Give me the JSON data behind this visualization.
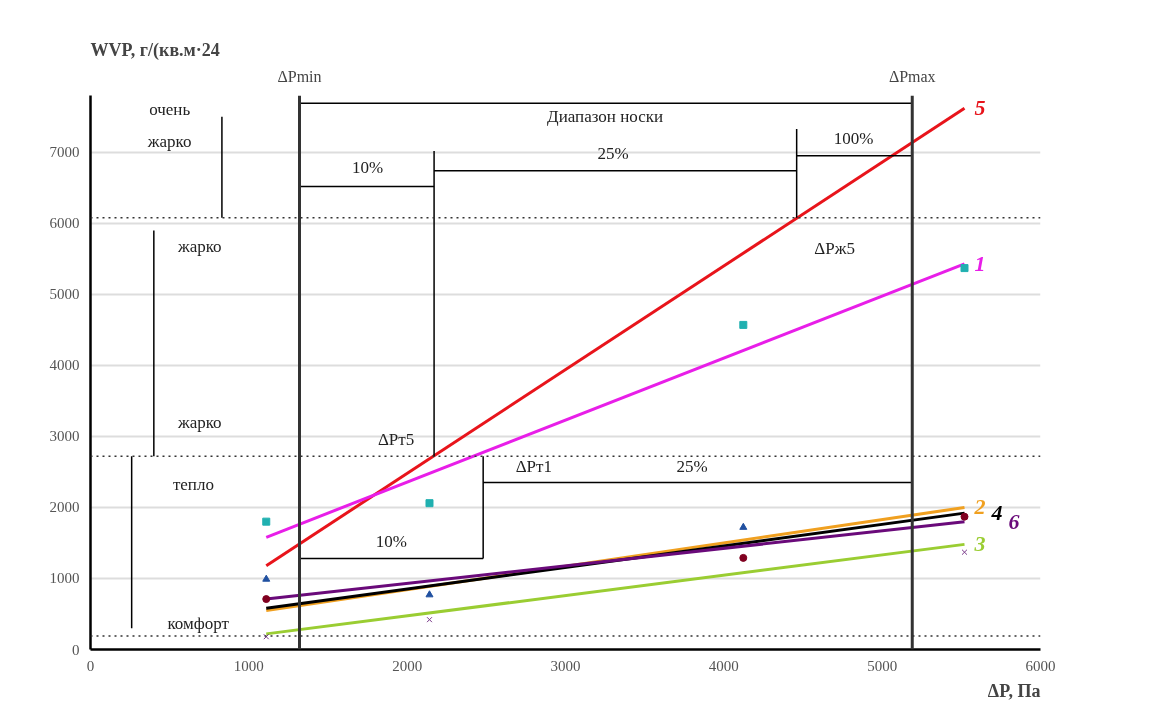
{
  "chart_data": {
    "type": "line",
    "xlabel": "ΔP, Па",
    "ylabel": "WVP,\nг/(кв.м·24",
    "xlim": [
      0,
      6000
    ],
    "ylim": [
      0,
      7800
    ],
    "xticks": [
      0,
      1000,
      2000,
      3000,
      4000,
      5000,
      6000
    ],
    "yticks": [
      0,
      1000,
      2000,
      3000,
      4000,
      5000,
      6000,
      7000
    ],
    "grid": "y",
    "legend": false,
    "line_style": "solid",
    "series": [
      {
        "name": "5",
        "color": "#e8141b",
        "x": [
          1110,
          5520
        ],
        "values": [
          1180,
          7620
        ]
      },
      {
        "name": "1",
        "color": "#e81ee8",
        "x": [
          1110,
          5520
        ],
        "values": [
          1580,
          5430
        ]
      },
      {
        "name": "2",
        "color": "#f0a020",
        "x": [
          1110,
          5520
        ],
        "values": [
          550,
          2000
        ]
      },
      {
        "name": "4",
        "color": "#000000",
        "x": [
          1110,
          5520
        ],
        "values": [
          580,
          1920
        ]
      },
      {
        "name": "6",
        "color": "#6a0a7a",
        "x": [
          1110,
          5520
        ],
        "values": [
          710,
          1800
        ]
      },
      {
        "name": "3",
        "color": "#9acd32",
        "x": [
          1110,
          5520
        ],
        "values": [
          220,
          1480
        ]
      },
      {
        "type": "scatter",
        "marker": "square",
        "color": "#20b0b0",
        "x": [
          1110,
          2141,
          4123,
          5520
        ],
        "values": [
          1800,
          2060,
          4570,
          5370
        ]
      },
      {
        "type": "scatter",
        "marker": "triangle",
        "color": "#2050a0",
        "x": [
          1110,
          2141,
          4123
        ],
        "values": [
          990,
          770,
          1720
        ]
      },
      {
        "type": "scatter",
        "marker": "circle",
        "color": "#800020",
        "x": [
          1110,
          4123,
          5520
        ],
        "values": [
          710,
          1290,
          1870
        ]
      },
      {
        "type": "scatter",
        "marker": "cross",
        "color": "#7a3a8a",
        "x": [
          1110,
          2141,
          5520
        ],
        "values": [
          180,
          420,
          1370
        ]
      },
      {
        "color": "#000000",
        "x": [
          1320,
          5190
        ],
        "values": [
          7690,
          7690
        ]
      },
      {
        "color": "#000000",
        "x": [
          1320,
          2170
        ],
        "values": [
          6520,
          6520
        ]
      },
      {
        "color": "#000000",
        "x": [
          2170,
          4460
        ],
        "values": [
          6740,
          6740
        ]
      },
      {
        "color": "#000000",
        "x": [
          4460,
          5190
        ],
        "values": [
          6950,
          6950
        ]
      },
      {
        "color": "#000000",
        "x": [
          1320,
          2480
        ],
        "values": [
          1280,
          1280
        ]
      },
      {
        "color": "#000000",
        "x": [
          2480,
          5190
        ],
        "values": [
          2350,
          2350
        ]
      },
      {
        "color": "#000000",
        "x": [
          2170,
          2170
        ],
        "values": [
          2720,
          7020
        ]
      },
      {
        "color": "#000000",
        "x": [
          4460,
          4460
        ],
        "values": [
          6080,
          7330
        ]
      },
      {
        "color": "#000000",
        "x": [
          2480,
          2480
        ],
        "values": [
          1280,
          2720
        ]
      },
      {
        "color": "#000000",
        "x": [
          830,
          830
        ],
        "values": [
          7500,
          6080
        ]
      },
      {
        "color": "#000000",
        "x": [
          400,
          400
        ],
        "values": [
          5900,
          2720
        ]
      },
      {
        "color": "#000000",
        "x": [
          260,
          260
        ],
        "values": [
          2720,
          300
        ]
      }
    ],
    "ref_lines": [
      {
        "axis": "y",
        "value": 6080,
        "label": null,
        "line_style": "dotted"
      },
      {
        "axis": "y",
        "value": 2720,
        "label": null,
        "line_style": "dotted"
      },
      {
        "axis": "y",
        "value": 190,
        "label": null,
        "line_style": "dotted"
      },
      {
        "axis": "x",
        "value": 1320,
        "label": "ΔPmin",
        "line_style": "solid"
      },
      {
        "axis": "x",
        "value": 5190,
        "label": "ΔPmax",
        "line_style": "solid"
      }
    ],
    "annotations": [
      "очень",
      "жарко",
      "жарко",
      "жарко",
      "тепло",
      "комфорт",
      "Диапазон носки",
      "10%",
      "25%",
      "100%",
      "ΔPж5",
      "ΔPт5",
      "ΔPт1",
      "10%",
      "25%"
    ]
  }
}
